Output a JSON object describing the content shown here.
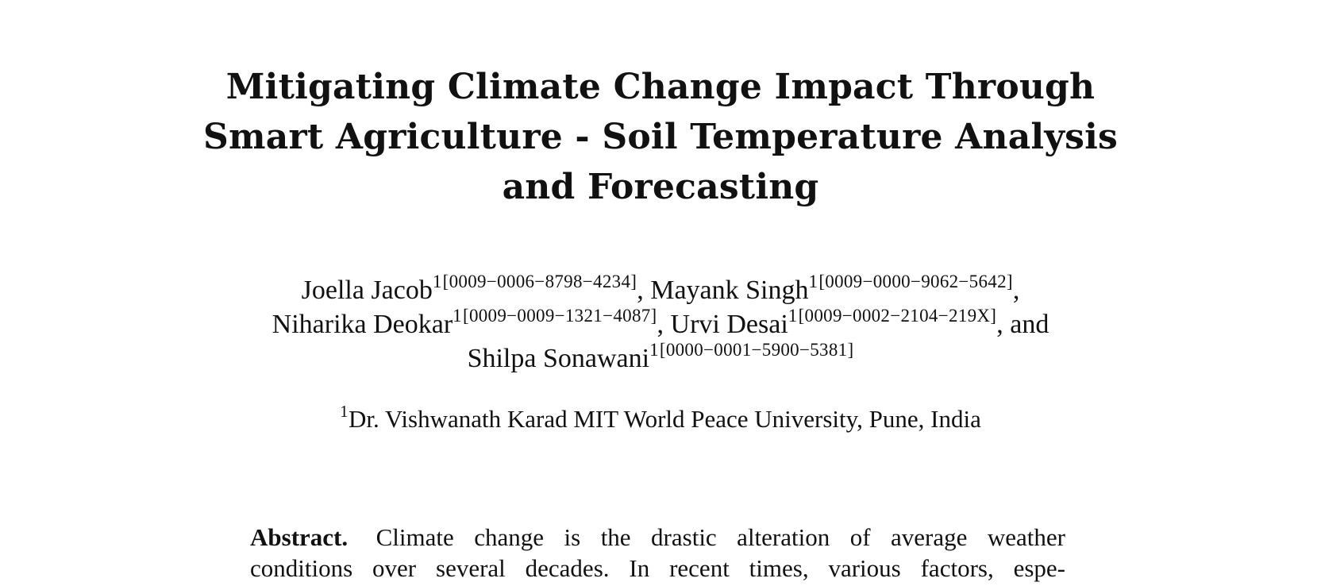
{
  "paper": {
    "title_lines": [
      "Mitigating Climate Change Impact Through",
      "Smart Agriculture - Soil Temperature Analysis",
      "and Forecasting"
    ],
    "authors": [
      {
        "name": "Joella Jacob",
        "affil": "1",
        "orcid": "[0009−0006−8798−4234]",
        "sep": ","
      },
      {
        "name": "Mayank Singh",
        "affil": "1",
        "orcid": "[0009−0000−9062−5642]",
        "sep": ","
      },
      {
        "name": "Niharika Deokar",
        "affil": "1",
        "orcid": "[0009−0009−1321−4087]",
        "sep": ","
      },
      {
        "name": "Urvi Desai",
        "affil": "1",
        "orcid": "[0009−0002−2104−219X]",
        "sep": ", and"
      },
      {
        "name": "Shilpa Sonawani",
        "affil": "1",
        "orcid": "[0000−0001−5900−5381]",
        "sep": ""
      }
    ],
    "affiliation": {
      "marker": "1",
      "text": "Dr. Vishwanath Karad MIT World Peace University, Pune, India"
    },
    "abstract": {
      "heading": "Abstract.",
      "lines": [
        "Climate change is the drastic alteration of average weather",
        "conditions over several decades. In recent times, various factors, espe-"
      ]
    }
  }
}
